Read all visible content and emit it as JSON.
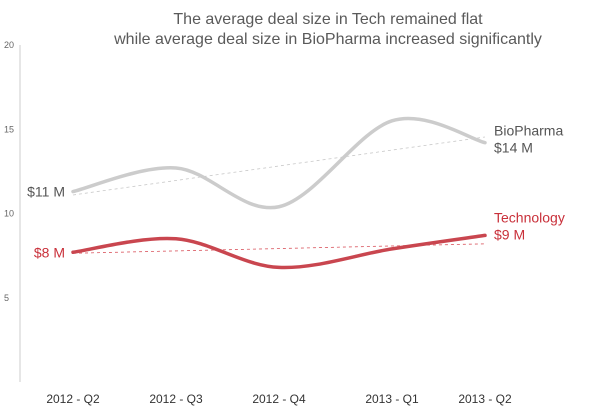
{
  "chart_data": {
    "type": "line",
    "title_line1": "The average deal size in Tech remained flat",
    "title_line2": "while average deal size in BioPharma increased significantly",
    "categories": [
      "2012 - Q2",
      "2012 - Q3",
      "2012 - Q4",
      "2013 - Q1",
      "2013 - Q2"
    ],
    "ylim": [
      0,
      20
    ],
    "yticks": [
      5,
      10,
      15,
      20
    ],
    "grid": false,
    "trendlines": true,
    "series": [
      {
        "name": "BioPharma",
        "values": [
          11.3,
          12.7,
          10.4,
          15.5,
          14.2
        ],
        "color": "#cccccc",
        "start_label": "$11 M",
        "end_label": "$14 M",
        "label_color": "#555555"
      },
      {
        "name": "Technology",
        "values": [
          7.7,
          8.5,
          6.8,
          7.9,
          8.7
        ],
        "color": "#c9464f",
        "start_label": "$8 M",
        "end_label": "$9 M",
        "label_color": "#c9303a"
      }
    ]
  }
}
